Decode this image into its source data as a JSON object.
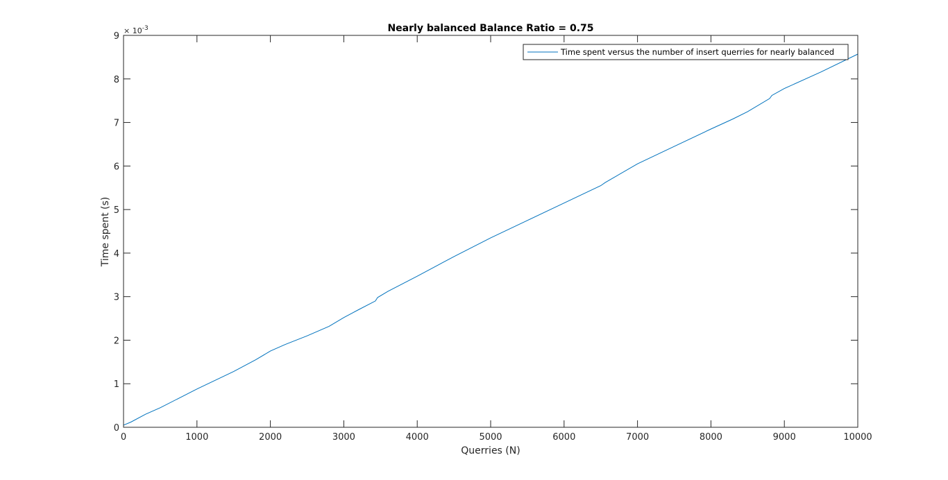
{
  "chart_data": {
    "type": "line",
    "title": "Nearly balanced Balance Ratio = 0.75",
    "xlabel": "Querries (N)",
    "ylabel": "Time spent (s)",
    "xlim": [
      0,
      10000
    ],
    "ylim": [
      0,
      9
    ],
    "y_exponent_label": "× 10",
    "y_exponent_power": "-3",
    "x_ticks": [
      0,
      1000,
      2000,
      3000,
      4000,
      5000,
      6000,
      7000,
      8000,
      9000,
      10000
    ],
    "x_tick_labels": [
      "0",
      "1000",
      "2000",
      "3000",
      "4000",
      "5000",
      "6000",
      "7000",
      "8000",
      "9000",
      "10000"
    ],
    "y_ticks": [
      0,
      1,
      2,
      3,
      4,
      5,
      6,
      7,
      8,
      9
    ],
    "y_tick_labels": [
      "0",
      "1",
      "2",
      "3",
      "4",
      "5",
      "6",
      "7",
      "8",
      "9"
    ],
    "grid": false,
    "legend_position": "top-right",
    "series": [
      {
        "name": "Time spent versus the number of insert querries for nearly balanced",
        "color": "#0072bd",
        "x": [
          0,
          100,
          300,
          500,
          1000,
          1500,
          1800,
          2000,
          2200,
          2500,
          2800,
          3000,
          3200,
          3430,
          3460,
          3600,
          4000,
          4500,
          5000,
          5500,
          6000,
          6500,
          6560,
          7000,
          7500,
          8000,
          8300,
          8500,
          8800,
          8830,
          9000,
          9500,
          10000
        ],
        "values": [
          0.05,
          0.12,
          0.3,
          0.45,
          0.88,
          1.28,
          1.55,
          1.75,
          1.9,
          2.1,
          2.32,
          2.52,
          2.7,
          2.9,
          2.98,
          3.12,
          3.47,
          3.92,
          4.35,
          4.75,
          5.15,
          5.55,
          5.62,
          6.05,
          6.45,
          6.85,
          7.08,
          7.25,
          7.55,
          7.62,
          7.78,
          8.16,
          8.57
        ]
      }
    ]
  }
}
